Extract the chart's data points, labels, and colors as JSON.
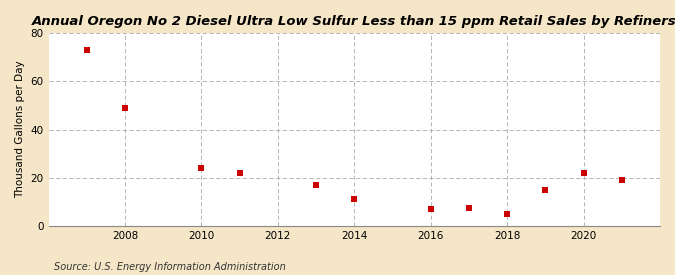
{
  "title": "Annual Oregon No 2 Diesel Ultra Low Sulfur Less than 15 ppm Retail Sales by Refiners",
  "ylabel": "Thousand Gallons per Day",
  "source": "Source: U.S. Energy Information Administration",
  "x_values": [
    2007,
    2008,
    2010,
    2011,
    2013,
    2014,
    2016,
    2017,
    2018,
    2019,
    2020,
    2021
  ],
  "y_values": [
    73,
    49,
    24,
    22,
    17,
    11,
    7,
    7.5,
    5,
    15,
    22,
    19
  ],
  "marker_color": "#cc0000",
  "marker_size": 5,
  "background_color": "#f5e6c8",
  "plot_bg_color": "#ffffff",
  "grid_color": "#aaaaaa",
  "xlim": [
    2006,
    2022
  ],
  "ylim": [
    0,
    80
  ],
  "xticks": [
    2008,
    2010,
    2012,
    2014,
    2016,
    2018,
    2020
  ],
  "yticks": [
    0,
    20,
    40,
    60,
    80
  ],
  "title_fontsize": 9.5,
  "label_fontsize": 7.5,
  "tick_fontsize": 7.5,
  "source_fontsize": 7
}
